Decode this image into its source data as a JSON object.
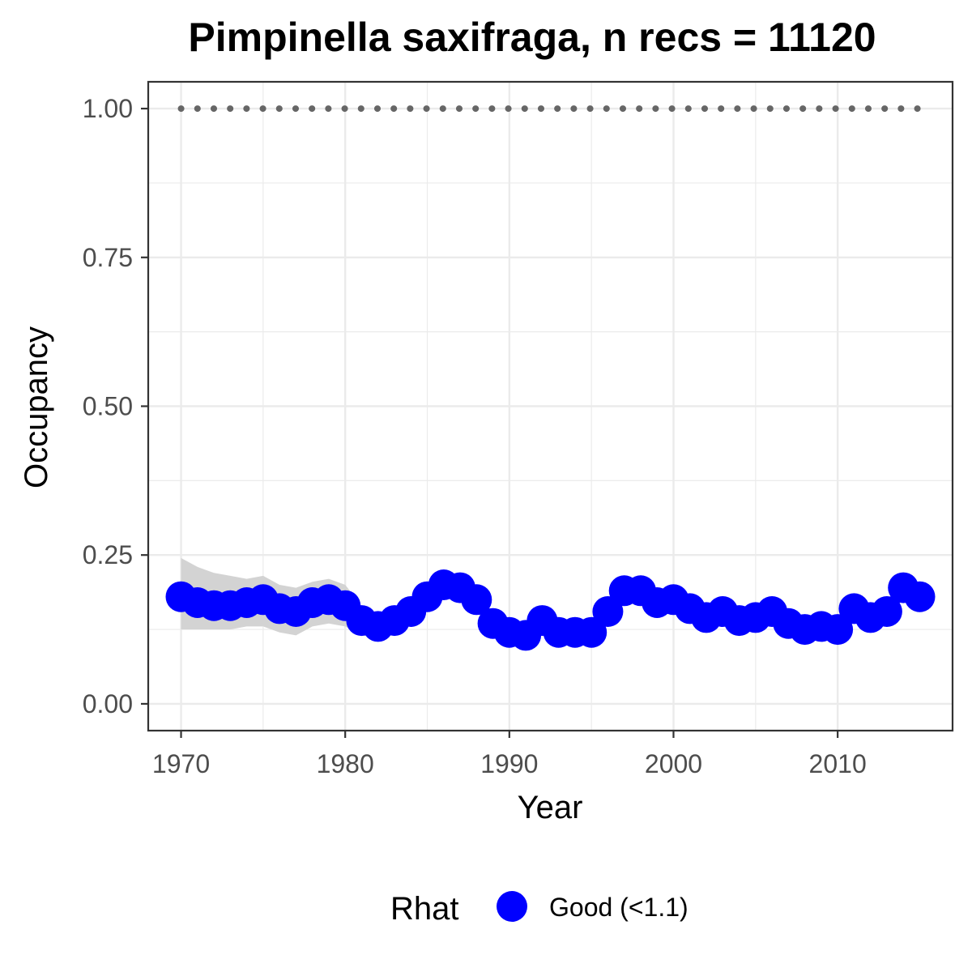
{
  "chart_data": {
    "type": "line",
    "title": "Pimpinella saxifraga, n recs = 11120",
    "xlabel": "Year",
    "ylabel": "Occupancy",
    "xlim": [
      1968,
      2017
    ],
    "ylim": [
      -0.045,
      1.045
    ],
    "x_ticks": [
      1970,
      1980,
      1990,
      2000,
      2010
    ],
    "x_tick_labels": [
      "1970",
      "1980",
      "1990",
      "2000",
      "2010"
    ],
    "y_ticks": [
      0,
      0.25,
      0.5,
      0.75,
      1.0
    ],
    "y_tick_labels": [
      "0.00",
      "0.25",
      "0.50",
      "0.75",
      "1.00"
    ],
    "grid": true,
    "legend_position": "bottom",
    "legend": {
      "title": "Rhat",
      "entries": [
        {
          "label": "Good (<1.1)",
          "color": "#0000ff"
        }
      ]
    },
    "colors": {
      "estimate": "#0000ff",
      "ribbon": "#d3d3d3",
      "reference": "#666666",
      "grid": "#ebebeb",
      "panel_border": "#333333",
      "tick_label": "#4d4d4d"
    },
    "series": [
      {
        "name": "Good (<1.1)",
        "x": [
          1970,
          1971,
          1972,
          1973,
          1974,
          1975,
          1976,
          1977,
          1978,
          1979,
          1980,
          1981,
          1982,
          1983,
          1984,
          1985,
          1986,
          1987,
          1988,
          1989,
          1990,
          1991,
          1992,
          1993,
          1994,
          1995,
          1996,
          1997,
          1998,
          1999,
          2000,
          2001,
          2002,
          2003,
          2004,
          2005,
          2006,
          2007,
          2008,
          2009,
          2010,
          2011,
          2012,
          2013,
          2014,
          2015
        ],
        "y": [
          0.18,
          0.17,
          0.165,
          0.165,
          0.17,
          0.175,
          0.16,
          0.155,
          0.17,
          0.175,
          0.165,
          0.14,
          0.13,
          0.14,
          0.155,
          0.18,
          0.2,
          0.195,
          0.175,
          0.135,
          0.12,
          0.115,
          0.14,
          0.12,
          0.12,
          0.12,
          0.155,
          0.19,
          0.19,
          0.17,
          0.175,
          0.16,
          0.145,
          0.155,
          0.14,
          0.145,
          0.155,
          0.135,
          0.125,
          0.13,
          0.125,
          0.16,
          0.145,
          0.155,
          0.195,
          0.18
        ]
      }
    ],
    "ribbon": {
      "x": [
        1970,
        1971,
        1972,
        1973,
        1974,
        1975,
        1976,
        1977,
        1978,
        1979,
        1980,
        1981,
        1982
      ],
      "lower": [
        0.125,
        0.125,
        0.125,
        0.125,
        0.13,
        0.13,
        0.12,
        0.115,
        0.13,
        0.135,
        0.13,
        0.115,
        0.11
      ],
      "upper": [
        0.245,
        0.23,
        0.22,
        0.215,
        0.21,
        0.215,
        0.2,
        0.195,
        0.205,
        0.21,
        0.2,
        0.165,
        0.15
      ]
    },
    "reference_line": {
      "y": 1.0,
      "x_range": [
        1970,
        2015
      ]
    }
  }
}
